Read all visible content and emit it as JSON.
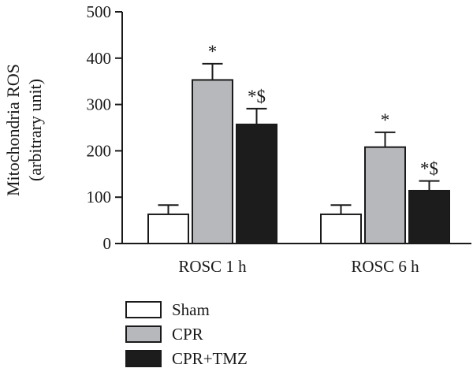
{
  "chart_data": {
    "type": "bar",
    "ylabel_line1": "Mitochondria ROS",
    "ylabel_line2": "(arbitrary unit)",
    "ylim": [
      0,
      500
    ],
    "yticks": [
      0,
      100,
      200,
      300,
      400,
      500
    ],
    "categories": [
      "ROSC 1 h",
      "ROSC 6 h"
    ],
    "series": [
      {
        "name": "Sham",
        "values": [
          63,
          63
        ],
        "errors": [
          20,
          20
        ],
        "annotations": [
          "",
          ""
        ],
        "color": "#ffffff"
      },
      {
        "name": "CPR",
        "values": [
          353,
          208
        ],
        "errors": [
          35,
          32
        ],
        "annotations": [
          "*",
          "*"
        ],
        "color": "#b7b8bb"
      },
      {
        "name": "CPR+TMZ",
        "values": [
          257,
          114
        ],
        "errors": [
          34,
          21
        ],
        "annotations": [
          "*$",
          "*$"
        ],
        "color": "#1c1c1c"
      }
    ],
    "legend_position": "bottom-left",
    "grid": false
  }
}
